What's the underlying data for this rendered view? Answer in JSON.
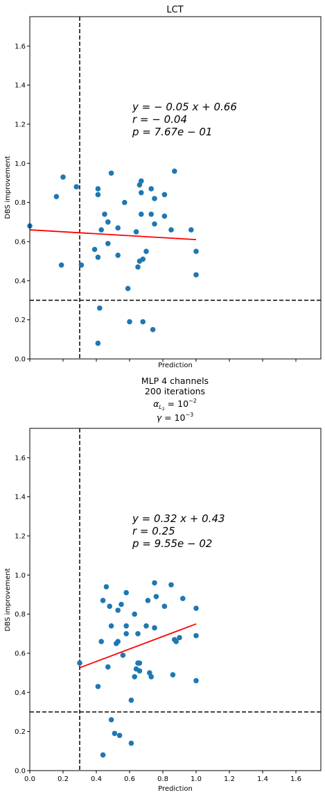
{
  "figure": {
    "background": "#ffffff"
  },
  "chart_data": [
    {
      "type": "scatter",
      "title_lines": [
        "LCT"
      ],
      "xlabel": "Prediction",
      "ylabel": "DBS improvement",
      "xlim": [
        0,
        1.75
      ],
      "ylim": [
        0,
        1.75
      ],
      "xticks_visible": false,
      "yticks": [
        "0.0",
        "0.2",
        "0.4",
        "0.6",
        "0.8",
        "1.0",
        "1.2",
        "1.4",
        "1.6"
      ],
      "ytick_values": [
        0,
        0.2,
        0.4,
        0.6,
        0.8,
        1.0,
        1.2,
        1.4,
        1.6
      ],
      "grid": false,
      "point_color": "#1f77b4",
      "fit_color": "#ff0000",
      "fit": {
        "slope": -0.05,
        "intercept": 0.66,
        "x_range": [
          0.0,
          1.0
        ]
      },
      "vline_x": 0.3,
      "hline_y": 0.3,
      "annotation": [
        "y = − 0.05 x + 0.66",
        "r = − 0.04",
        "p = 7.67e − 01"
      ],
      "annotation_at": [
        0.6,
        1.26
      ],
      "points": [
        [
          0.0,
          0.68
        ],
        [
          0.16,
          0.83
        ],
        [
          0.19,
          0.48
        ],
        [
          0.2,
          0.93
        ],
        [
          0.28,
          0.88
        ],
        [
          0.31,
          0.48
        ],
        [
          0.39,
          0.56
        ],
        [
          0.41,
          0.87
        ],
        [
          0.41,
          0.84
        ],
        [
          0.41,
          0.52
        ],
        [
          0.42,
          0.26
        ],
        [
          0.41,
          0.08
        ],
        [
          0.43,
          0.66
        ],
        [
          0.45,
          0.74
        ],
        [
          0.47,
          0.7
        ],
        [
          0.47,
          0.7
        ],
        [
          0.47,
          0.59
        ],
        [
          0.49,
          0.95
        ],
        [
          0.53,
          0.67
        ],
        [
          0.53,
          0.53
        ],
        [
          0.57,
          0.8
        ],
        [
          0.59,
          0.36
        ],
        [
          0.6,
          0.19
        ],
        [
          0.64,
          0.65
        ],
        [
          0.65,
          0.47
        ],
        [
          0.66,
          0.89
        ],
        [
          0.66,
          0.5
        ],
        [
          0.67,
          0.91
        ],
        [
          0.67,
          0.85
        ],
        [
          0.67,
          0.74
        ],
        [
          0.68,
          0.51
        ],
        [
          0.68,
          0.19
        ],
        [
          0.7,
          0.55
        ],
        [
          0.73,
          0.87
        ],
        [
          0.73,
          0.74
        ],
        [
          0.74,
          0.15
        ],
        [
          0.75,
          0.82
        ],
        [
          0.75,
          0.69
        ],
        [
          0.81,
          0.84
        ],
        [
          0.81,
          0.73
        ],
        [
          0.85,
          0.66
        ],
        [
          0.87,
          0.96
        ],
        [
          0.97,
          0.66
        ],
        [
          1.0,
          0.55
        ],
        [
          1.0,
          0.43
        ]
      ]
    },
    {
      "type": "scatter",
      "title_lines": [
        "MLP 4 channels",
        "200 iterations",
        "αL2 = 10−2",
        "γ = 10−3"
      ],
      "title_rich": {
        "alpha": "α",
        "alpha_sub": "L",
        "alpha_subsub": "2",
        "alpha_eq": " = 10",
        "alpha_exp": "−2",
        "gamma": "γ",
        "gamma_eq": " = 10",
        "gamma_exp": "−3"
      },
      "xlabel": "Prediction",
      "ylabel": "DBS improvement",
      "xlim": [
        0,
        1.75
      ],
      "ylim": [
        0,
        1.75
      ],
      "xticks_visible": true,
      "xticks": [
        "0.0",
        "0.2",
        "0.4",
        "0.6",
        "0.8",
        "1.0",
        "1.2",
        "1.4",
        "1.6"
      ],
      "xtick_values": [
        0,
        0.2,
        0.4,
        0.6,
        0.8,
        1.0,
        1.2,
        1.4,
        1.6
      ],
      "yticks": [
        "0.0",
        "0.2",
        "0.4",
        "0.6",
        "0.8",
        "1.0",
        "1.2",
        "1.4",
        "1.6"
      ],
      "ytick_values": [
        0,
        0.2,
        0.4,
        0.6,
        0.8,
        1.0,
        1.2,
        1.4,
        1.6
      ],
      "grid": false,
      "point_color": "#1f77b4",
      "fit_color": "#ff0000",
      "fit": {
        "slope": 0.32,
        "intercept": 0.43,
        "x_range": [
          0.3,
          1.0
        ]
      },
      "vline_x": 0.3,
      "hline_y": 0.3,
      "annotation": [
        "y = 0.32 x + 0.43",
        "r = 0.25",
        "p = 9.55e − 02"
      ],
      "annotation_at": [
        0.6,
        1.26
      ],
      "points": [
        [
          0.3,
          0.55
        ],
        [
          0.41,
          0.43
        ],
        [
          0.43,
          0.66
        ],
        [
          0.44,
          0.87
        ],
        [
          0.44,
          0.08
        ],
        [
          0.46,
          0.94
        ],
        [
          0.47,
          0.53
        ],
        [
          0.48,
          0.84
        ],
        [
          0.49,
          0.74
        ],
        [
          0.49,
          0.26
        ],
        [
          0.51,
          0.19
        ],
        [
          0.52,
          0.65
        ],
        [
          0.53,
          0.66
        ],
        [
          0.53,
          0.82
        ],
        [
          0.54,
          0.18
        ],
        [
          0.55,
          0.85
        ],
        [
          0.56,
          0.59
        ],
        [
          0.58,
          0.91
        ],
        [
          0.58,
          0.74
        ],
        [
          0.58,
          0.7
        ],
        [
          0.61,
          0.36
        ],
        [
          0.61,
          0.14
        ],
        [
          0.63,
          0.8
        ],
        [
          0.63,
          0.48
        ],
        [
          0.64,
          0.52
        ],
        [
          0.65,
          0.55
        ],
        [
          0.65,
          0.7
        ],
        [
          0.66,
          0.55
        ],
        [
          0.66,
          0.51
        ],
        [
          0.7,
          0.74
        ],
        [
          0.71,
          0.87
        ],
        [
          0.72,
          0.5
        ],
        [
          0.73,
          0.48
        ],
        [
          0.75,
          0.96
        ],
        [
          0.75,
          0.73
        ],
        [
          0.76,
          0.89
        ],
        [
          0.81,
          0.84
        ],
        [
          0.85,
          0.95
        ],
        [
          0.86,
          0.49
        ],
        [
          0.87,
          0.67
        ],
        [
          0.88,
          0.66
        ],
        [
          0.9,
          0.68
        ],
        [
          0.92,
          0.88
        ],
        [
          1.0,
          0.83
        ],
        [
          1.0,
          0.69
        ],
        [
          1.0,
          0.46
        ]
      ]
    }
  ]
}
